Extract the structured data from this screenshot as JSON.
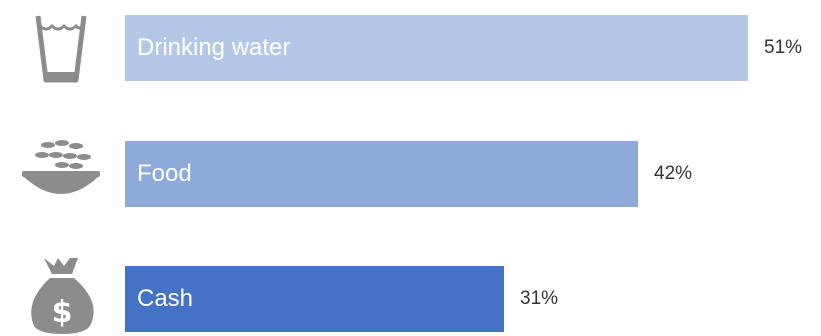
{
  "chart_data": {
    "type": "bar",
    "orientation": "horizontal",
    "categories": [
      "Drinking water",
      "Food",
      "Cash"
    ],
    "values": [
      51,
      42,
      31
    ],
    "value_labels": [
      "51%",
      "42%",
      "31%"
    ],
    "unit": "%",
    "xlim": [
      0,
      57
    ],
    "grid": false,
    "legend": "none",
    "bar_colors": [
      "#b4c7e7",
      "#8eaadb",
      "#4472c4"
    ],
    "icons": [
      "water-glass-icon",
      "food-bowl-icon",
      "money-bag-icon"
    ]
  },
  "colors": {
    "icon": "#8c8c8c",
    "label_text": "#ffffff",
    "value_text": "#333333"
  }
}
